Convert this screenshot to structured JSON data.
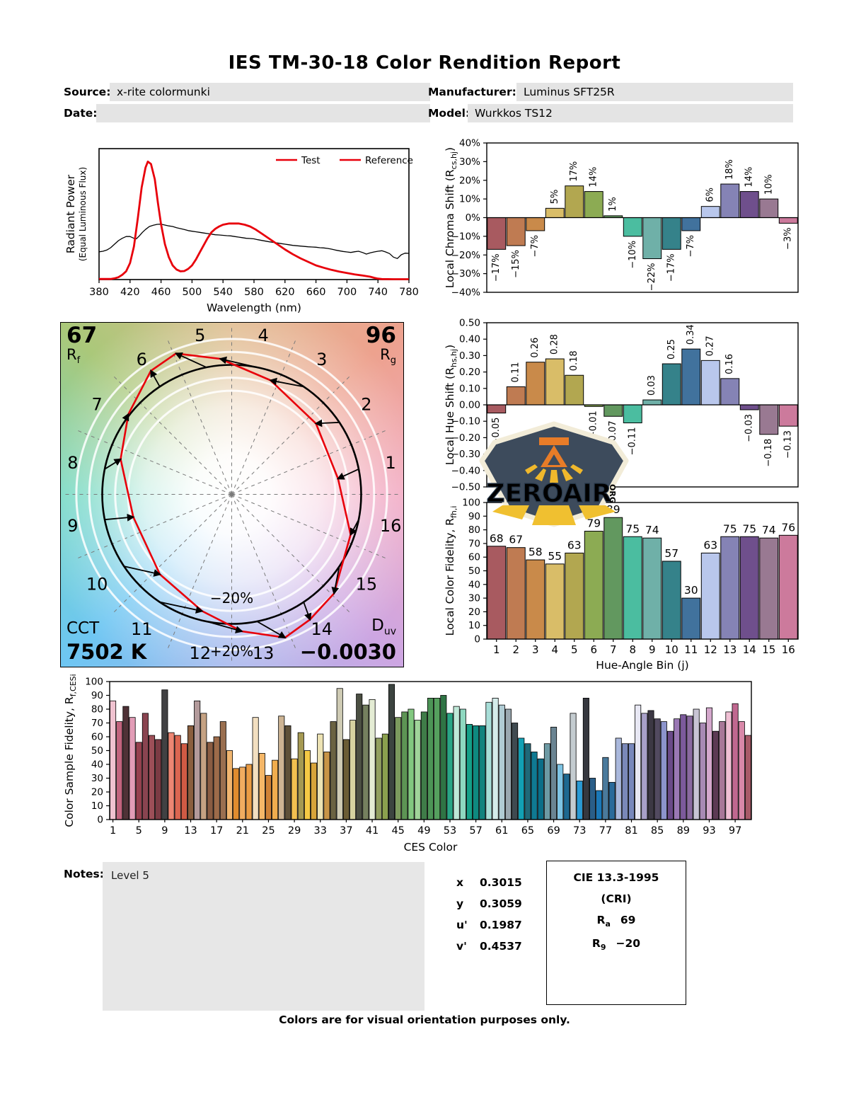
{
  "title": "IES TM-30-18 Color Rendition Report",
  "header": {
    "source_label": "Source:",
    "source": "x-rite colormunki",
    "manufacturer_label": "Manufacturer:",
    "manufacturer": "Luminus SFT25R",
    "date_label": "Date:",
    "date": "",
    "model_label": "Model:",
    "model": "Wurkkos TS12"
  },
  "colors": {
    "test_red": "#e8000b",
    "reference_black": "#000000",
    "hue_bins": [
      "#a85a60",
      "#bf7b52",
      "#c98a4a",
      "#d9bd68",
      "#b2a750",
      "#8cab53",
      "#62985f",
      "#4bbda0",
      "#6fb0a8",
      "#35828a",
      "#41729d",
      "#b9c7ec",
      "#8583b5",
      "#6f4f8c",
      "#997992",
      "#cc7a9c"
    ],
    "ces_palette": [
      "#f0c2d0",
      "#c2647e",
      "#4f3237",
      "#e29cb6",
      "#96404e",
      "#8a4450",
      "#9d4f58",
      "#7c3b44",
      "#414143",
      "#ee8673",
      "#dc6651",
      "#d05a44",
      "#8a5e3e",
      "#b39a9b",
      "#c5a283",
      "#8a5c42",
      "#9d6b4a",
      "#9a6f50",
      "#f1b670",
      "#e08c2e",
      "#f0ac60",
      "#ea9c44",
      "#f2dfc0",
      "#f5b768",
      "#cf8136",
      "#f0ad4e",
      "#cdb493",
      "#5f5139",
      "#f2c050",
      "#a59952",
      "#f5c945",
      "#d8a43a",
      "#ede3b4",
      "#c89447",
      "#6a6242",
      "#cfcbb4",
      "#6b5c35",
      "#d6d2a0",
      "#4b4f42",
      "#75805f",
      "#e4ecd4",
      "#92a060",
      "#8ba04e",
      "#3c4440",
      "#7c9a5e",
      "#5d9454",
      "#82c880",
      "#a0d49a",
      "#3f7c48",
      "#4c9456",
      "#55a05e",
      "#2f7445",
      "#2aa586",
      "#bfe8d8",
      "#8ed8c0",
      "#16a088",
      "#0e8a80",
      "#12837e",
      "#a8ded8",
      "#d4ecea",
      "#b0ccd4",
      "#9aa8b0",
      "#3f4a50",
      "#12a0b4",
      "#1f6878",
      "#0f7a92",
      "#0b6e88",
      "#6d9aa4",
      "#6a8492",
      "#7ec4e4",
      "#1e6890",
      "#c4ccd0",
      "#2a9ad4",
      "#36383f",
      "#2a5e88",
      "#1a78b8",
      "#4a7a9c",
      "#2a6a9a",
      "#aab8dc",
      "#7a88b8",
      "#7888bc",
      "#e8e8f4",
      "#a8a0c8",
      "#3c3844",
      "#524a60",
      "#8c94cc",
      "#6a4a88",
      "#9a78b4",
      "#7c5a9c",
      "#8a6aa0",
      "#c8c4d4",
      "#a88ab4",
      "#d4a8cc",
      "#5c3a54",
      "#a87898",
      "#f0c0d4",
      "#c06890",
      "#d888a8",
      "#a85a68"
    ]
  },
  "chart_data": [
    {
      "id": "spd",
      "type": "line",
      "title": "",
      "xlabel": "Wavelength (nm)",
      "ylabel_line1": "Radiant Power",
      "ylabel_line2": "(Equal Luminous Flux)",
      "xlim": [
        380,
        780
      ],
      "ylim": [
        0,
        1.11
      ],
      "xticks": [
        380,
        420,
        460,
        500,
        540,
        580,
        620,
        660,
        700,
        740,
        780
      ],
      "grid": false,
      "legend": [
        {
          "label": "Test",
          "swatch": "#e8000b",
          "text_color": "#e8000b"
        },
        {
          "label": "Reference",
          "swatch": "#e8000b",
          "text_color": "#000000"
        }
      ],
      "series": [
        {
          "name": "Reference",
          "color": "#000000",
          "width": 1.3,
          "points": [
            [
              380,
              0.235
            ],
            [
              385,
              0.24
            ],
            [
              390,
              0.25
            ],
            [
              395,
              0.27
            ],
            [
              400,
              0.3
            ],
            [
              405,
              0.33
            ],
            [
              410,
              0.35
            ],
            [
              415,
              0.365
            ],
            [
              420,
              0.365
            ],
            [
              425,
              0.35
            ],
            [
              428,
              0.345
            ],
            [
              432,
              0.37
            ],
            [
              436,
              0.4
            ],
            [
              440,
              0.425
            ],
            [
              445,
              0.45
            ],
            [
              450,
              0.46
            ],
            [
              455,
              0.468
            ],
            [
              460,
              0.47
            ],
            [
              465,
              0.462
            ],
            [
              470,
              0.455
            ],
            [
              475,
              0.45
            ],
            [
              480,
              0.44
            ],
            [
              485,
              0.432
            ],
            [
              490,
              0.425
            ],
            [
              495,
              0.415
            ],
            [
              500,
              0.41
            ],
            [
              505,
              0.405
            ],
            [
              510,
              0.4
            ],
            [
              515,
              0.395
            ],
            [
              520,
              0.39
            ],
            [
              525,
              0.385
            ],
            [
              530,
              0.38
            ],
            [
              535,
              0.378
            ],
            [
              540,
              0.375
            ],
            [
              545,
              0.372
            ],
            [
              550,
              0.37
            ],
            [
              555,
              0.365
            ],
            [
              560,
              0.36
            ],
            [
              565,
              0.355
            ],
            [
              570,
              0.35
            ],
            [
              575,
              0.348
            ],
            [
              580,
              0.345
            ],
            [
              585,
              0.338
            ],
            [
              590,
              0.332
            ],
            [
              595,
              0.326
            ],
            [
              600,
              0.32
            ],
            [
              605,
              0.315
            ],
            [
              610,
              0.31
            ],
            [
              615,
              0.305
            ],
            [
              620,
              0.3
            ],
            [
              625,
              0.295
            ],
            [
              630,
              0.29
            ],
            [
              635,
              0.287
            ],
            [
              640,
              0.284
            ],
            [
              645,
              0.281
            ],
            [
              650,
              0.278
            ],
            [
              655,
              0.276
            ],
            [
              660,
              0.274
            ],
            [
              665,
              0.27
            ],
            [
              670,
              0.268
            ],
            [
              675,
              0.264
            ],
            [
              680,
              0.258
            ],
            [
              685,
              0.25
            ],
            [
              690,
              0.244
            ],
            [
              695,
              0.238
            ],
            [
              700,
              0.234
            ],
            [
              705,
              0.23
            ],
            [
              710,
              0.236
            ],
            [
              715,
              0.24
            ],
            [
              720,
              0.23
            ],
            [
              725,
              0.216
            ],
            [
              730,
              0.226
            ],
            [
              735,
              0.234
            ],
            [
              740,
              0.24
            ],
            [
              745,
              0.244
            ],
            [
              750,
              0.234
            ],
            [
              755,
              0.22
            ],
            [
              760,
              0.19
            ],
            [
              765,
              0.178
            ],
            [
              770,
              0.21
            ],
            [
              775,
              0.224
            ],
            [
              780,
              0.222
            ]
          ]
        },
        {
          "name": "Test",
          "color": "#e8000b",
          "width": 2.8,
          "points": [
            [
              380,
              0.005
            ],
            [
              395,
              0.005
            ],
            [
              400,
              0.01
            ],
            [
              405,
              0.02
            ],
            [
              410,
              0.04
            ],
            [
              415,
              0.07
            ],
            [
              420,
              0.14
            ],
            [
              425,
              0.28
            ],
            [
              430,
              0.52
            ],
            [
              435,
              0.78
            ],
            [
              440,
              0.95
            ],
            [
              443,
              1.0
            ],
            [
              447,
              0.98
            ],
            [
              452,
              0.85
            ],
            [
              456,
              0.65
            ],
            [
              460,
              0.47
            ],
            [
              465,
              0.3
            ],
            [
              470,
              0.19
            ],
            [
              475,
              0.12
            ],
            [
              480,
              0.085
            ],
            [
              485,
              0.07
            ],
            [
              490,
              0.072
            ],
            [
              495,
              0.09
            ],
            [
              500,
              0.12
            ],
            [
              505,
              0.17
            ],
            [
              510,
              0.23
            ],
            [
              515,
              0.29
            ],
            [
              520,
              0.35
            ],
            [
              525,
              0.4
            ],
            [
              530,
              0.43
            ],
            [
              535,
              0.45
            ],
            [
              540,
              0.465
            ],
            [
              548,
              0.475
            ],
            [
              560,
              0.475
            ],
            [
              568,
              0.465
            ],
            [
              575,
              0.45
            ],
            [
              582,
              0.425
            ],
            [
              590,
              0.39
            ],
            [
              600,
              0.345
            ],
            [
              610,
              0.3
            ],
            [
              620,
              0.255
            ],
            [
              630,
              0.215
            ],
            [
              640,
              0.18
            ],
            [
              650,
              0.15
            ],
            [
              660,
              0.12
            ],
            [
              670,
              0.1
            ],
            [
              680,
              0.082
            ],
            [
              690,
              0.068
            ],
            [
              700,
              0.055
            ],
            [
              710,
              0.044
            ],
            [
              720,
              0.034
            ],
            [
              730,
              0.024
            ],
            [
              735,
              0.015
            ],
            [
              740,
              0.008
            ],
            [
              745,
              0.004
            ],
            [
              760,
              0.003
            ],
            [
              780,
              0.003
            ]
          ]
        }
      ]
    },
    {
      "id": "chroma",
      "type": "bar",
      "ylabel": {
        "pre": "Local Chroma Shift (R",
        "sub": "cs,hj",
        "post": ")"
      },
      "ylim": [
        -40,
        40
      ],
      "ystep": 10,
      "ysuffix": "%",
      "categories": [
        1,
        2,
        3,
        4,
        5,
        6,
        7,
        8,
        9,
        10,
        11,
        12,
        13,
        14,
        15,
        16
      ],
      "values": [
        -17,
        -15,
        -7,
        5,
        17,
        14,
        1,
        -10,
        -22,
        -17,
        -7,
        6,
        18,
        14,
        10,
        -3
      ],
      "bar_labels": "rotated",
      "label_suffix": "%"
    },
    {
      "id": "hue",
      "type": "bar",
      "ylabel": {
        "pre": "Local Hue Shift (R",
        "sub": "hs,hj",
        "post": ")"
      },
      "ylim": [
        -0.5,
        0.5
      ],
      "ystep": 0.1,
      "ydecimals": 2,
      "categories": [
        1,
        2,
        3,
        4,
        5,
        6,
        7,
        8,
        9,
        10,
        11,
        12,
        13,
        14,
        15,
        16
      ],
      "values": [
        -0.05,
        0.11,
        0.26,
        0.28,
        0.18,
        -0.01,
        -0.07,
        -0.11,
        0.03,
        0.25,
        0.34,
        0.27,
        0.16,
        -0.03,
        -0.18,
        -0.13
      ],
      "bar_labels": "rotated",
      "label_decimals": 2
    },
    {
      "id": "fid",
      "type": "bar",
      "ylabel": {
        "pre": "Local Color Fidelity, R",
        "sub": "fh,i",
        "post": ""
      },
      "xlabel": "Hue-Angle Bin (j)",
      "ylim": [
        0,
        100
      ],
      "ystep": 10,
      "categories": [
        1,
        2,
        3,
        4,
        5,
        6,
        7,
        8,
        9,
        10,
        11,
        12,
        13,
        14,
        15,
        16
      ],
      "values": [
        68,
        67,
        58,
        55,
        63,
        79,
        89,
        75,
        74,
        57,
        30,
        63,
        75,
        75,
        74,
        76
      ],
      "bar_labels": "plain",
      "xtick_step": 1
    },
    {
      "id": "ces",
      "type": "bar",
      "ylabel": {
        "pre": "Color Sample Fidelity, R",
        "sub": "f,CESi",
        "post": ""
      },
      "xlabel": "CES Color",
      "ylim": [
        0,
        100
      ],
      "ystep": 10,
      "xtick_step": 4,
      "values": [
        86,
        71,
        82,
        74,
        56,
        77,
        61,
        58,
        94,
        63,
        61,
        55,
        68,
        86,
        77,
        56,
        60,
        71,
        50,
        37,
        38,
        40,
        74,
        48,
        32,
        43,
        75,
        68,
        44,
        63,
        50,
        41,
        62,
        49,
        71,
        95,
        58,
        72,
        91,
        83,
        87,
        59,
        62,
        98,
        74,
        78,
        80,
        72,
        78,
        88,
        88,
        90,
        77,
        82,
        80,
        69,
        68,
        68,
        85,
        88,
        83,
        80,
        70,
        59,
        55,
        49,
        44,
        55,
        67,
        40,
        33,
        77,
        28,
        88,
        30,
        21,
        45,
        27,
        59,
        55,
        55,
        83,
        77,
        79,
        73,
        71,
        64,
        73,
        76,
        75,
        80,
        70,
        81,
        64,
        71,
        78,
        84,
        71,
        61
      ]
    },
    {
      "id": "cvg",
      "type": "cvg",
      "rf": 67,
      "rg": 96,
      "cct": "7502 K",
      "duv": "−0.0030",
      "chroma_shift": [
        -17,
        -15,
        -7,
        5,
        17,
        14,
        1,
        -10,
        -22,
        -17,
        -7,
        6,
        18,
        14,
        10,
        -3
      ],
      "hue_shift": [
        -0.05,
        0.11,
        0.26,
        0.28,
        0.18,
        -0.01,
        -0.07,
        -0.11,
        0.03,
        0.25,
        0.34,
        0.27,
        0.16,
        -0.03,
        -0.18,
        -0.13
      ],
      "bin_numbers": [
        1,
        2,
        3,
        4,
        5,
        6,
        7,
        8,
        9,
        10,
        11,
        12,
        13,
        14,
        15,
        16
      ],
      "ring_label_outer": "+20%",
      "ring_label_inner": "−20%"
    }
  ],
  "cvg": {
    "rf_value": "67",
    "rf_base": "R",
    "rf_sub": "f",
    "rg_value": "96",
    "rg_base": "R",
    "rg_sub": "g",
    "cct_label": "CCT",
    "cct_value": "7502 K",
    "duv_base": "D",
    "duv_sub": "uv",
    "duv_value": "−0.0030"
  },
  "notes": {
    "label": "Notes:",
    "text": "Level 5"
  },
  "chromaticity": [
    {
      "label": "x",
      "value": "0.3015"
    },
    {
      "label": "y",
      "value": "0.3059"
    },
    {
      "label": "u'",
      "value": "0.1987"
    },
    {
      "label": "v'",
      "value": "0.4537"
    }
  ],
  "cri": {
    "title": "CIE 13.3-1995",
    "subtitle": "(CRI)",
    "rows": [
      {
        "base": "R",
        "sub": "a",
        "value": "69"
      },
      {
        "base": "R",
        "sub": "9",
        "value": "−20"
      }
    ]
  },
  "footer": "Colors are for visual orientation purposes only.",
  "logo": {
    "word": "ZEROAIR",
    "tld": "ORG"
  }
}
